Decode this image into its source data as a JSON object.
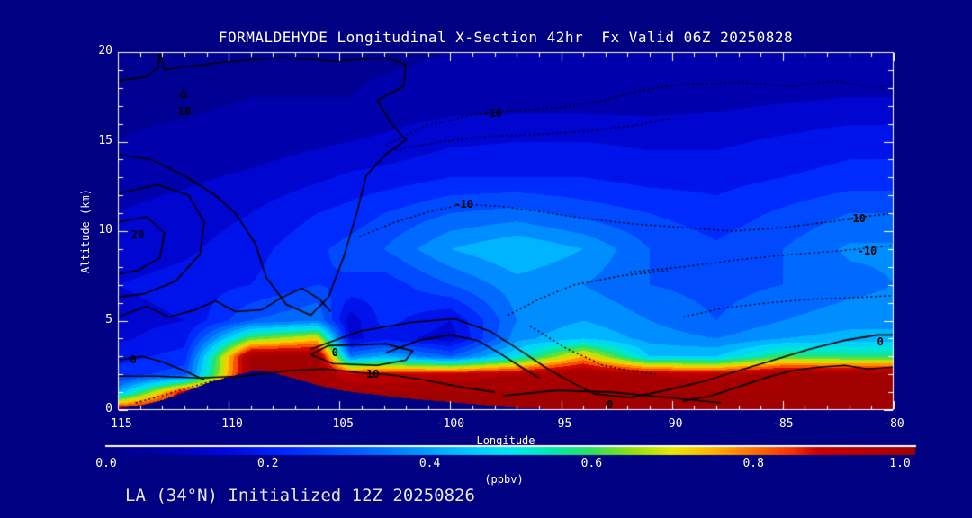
{
  "title": "FORMALDEHYDE Longitudinal X-Section 42hr  Fx Valid 06Z 20250828",
  "footer": "LA (34°N) Initialized 12Z 20250826",
  "colors": {
    "background": "#000082",
    "frame": "#FFFFFF",
    "text": "#FFFFFF",
    "footer_text": "#E6E6E6",
    "contour_line": "#000000"
  },
  "chart_data": {
    "type": "heatmap",
    "title": "FORMALDEHYDE Longitudinal X-Section 42hr  Fx Valid 06Z 20250828",
    "xlabel": "Longitude",
    "ylabel": "Altitude (km)",
    "xlim": [
      -115,
      -80
    ],
    "ylim": [
      0,
      20
    ],
    "grid_on": false,
    "x_major_ticks": [
      -115,
      -110,
      -105,
      -100,
      -95,
      -90,
      -85,
      -80
    ],
    "x_tick_labels": [
      "-115",
      "-110",
      "-105",
      "-100",
      "-95",
      "-90",
      "-85",
      "-80"
    ],
    "x_minor_step": 1,
    "y_major_ticks": [
      0,
      5,
      10,
      15,
      20
    ],
    "y_tick_labels": [
      "0",
      "5",
      "10",
      "15",
      "20"
    ],
    "y_minor_step": 1,
    "grid": {
      "lon": [
        -115,
        -112,
        -109,
        -106,
        -104.5,
        -103,
        -100,
        -97,
        -94,
        -91,
        -88,
        -85,
        -82,
        -80
      ],
      "alt_km": [
        0,
        1,
        2,
        3,
        4,
        5,
        7,
        9,
        11,
        13,
        15,
        17.5,
        20
      ],
      "ppbv": [
        [
          0.95,
          1.0,
          1.0,
          1.0,
          1.0,
          1.0,
          1.0,
          1.0,
          1.0,
          1.0,
          1.0,
          1.0,
          1.0,
          1.0
        ],
        [
          0.4,
          0.9,
          1.0,
          1.0,
          1.0,
          1.0,
          1.0,
          1.0,
          1.0,
          1.0,
          1.0,
          1.0,
          1.0,
          1.0
        ],
        [
          0.22,
          0.28,
          1.0,
          1.0,
          0.9,
          0.9,
          0.92,
          0.95,
          1.0,
          0.95,
          0.92,
          1.0,
          1.0,
          1.0
        ],
        [
          0.18,
          0.22,
          1.0,
          1.0,
          0.35,
          0.42,
          0.3,
          0.5,
          0.75,
          0.45,
          0.45,
          0.6,
          0.58,
          0.58
        ],
        [
          0.14,
          0.18,
          0.62,
          0.72,
          0.13,
          0.18,
          0.12,
          0.38,
          0.45,
          0.38,
          0.35,
          0.4,
          0.42,
          0.42
        ],
        [
          0.13,
          0.15,
          0.3,
          0.35,
          0.12,
          0.22,
          0.15,
          0.35,
          0.4,
          0.35,
          0.3,
          0.35,
          0.38,
          0.38
        ],
        [
          0.15,
          0.17,
          0.2,
          0.25,
          0.24,
          0.22,
          0.3,
          0.38,
          0.35,
          0.3,
          0.28,
          0.3,
          0.33,
          0.35
        ],
        [
          0.12,
          0.14,
          0.18,
          0.24,
          0.27,
          0.3,
          0.4,
          0.45,
          0.4,
          0.3,
          0.26,
          0.3,
          0.36,
          0.36
        ],
        [
          0.1,
          0.12,
          0.15,
          0.2,
          0.22,
          0.25,
          0.3,
          0.32,
          0.28,
          0.25,
          0.22,
          0.26,
          0.3,
          0.3
        ],
        [
          0.08,
          0.09,
          0.11,
          0.14,
          0.16,
          0.17,
          0.2,
          0.2,
          0.2,
          0.18,
          0.18,
          0.2,
          0.22,
          0.22
        ],
        [
          0.05,
          0.06,
          0.07,
          0.09,
          0.1,
          0.11,
          0.14,
          0.15,
          0.15,
          0.14,
          0.14,
          0.16,
          0.18,
          0.18
        ],
        [
          0.04,
          0.04,
          0.05,
          0.05,
          0.05,
          0.06,
          0.07,
          0.07,
          0.07,
          0.07,
          0.08,
          0.09,
          0.1,
          0.1
        ],
        [
          0.03,
          0.03,
          0.04,
          0.04,
          0.04,
          0.04,
          0.05,
          0.05,
          0.05,
          0.05,
          0.05,
          0.06,
          0.07,
          0.07
        ]
      ]
    },
    "terrain_km": [
      [
        -115,
        0.1
      ],
      [
        -114,
        0.25
      ],
      [
        -113,
        0.55
      ],
      [
        -112,
        1.0
      ],
      [
        -111,
        1.5
      ],
      [
        -110,
        1.85
      ],
      [
        -109,
        2.15
      ],
      [
        -108.5,
        2.2
      ],
      [
        -108,
        2.1
      ],
      [
        -107,
        1.75
      ],
      [
        -106,
        1.4
      ],
      [
        -105,
        1.1
      ],
      [
        -104,
        0.95
      ],
      [
        -103,
        0.8
      ],
      [
        -102,
        0.65
      ],
      [
        -101,
        0.55
      ],
      [
        -100,
        0.45
      ],
      [
        -99,
        0.35
      ],
      [
        -98,
        0.22
      ],
      [
        -97,
        0.12
      ],
      [
        -96,
        0.08
      ],
      [
        -95,
        0.05
      ],
      [
        -90,
        0.05
      ],
      [
        -85,
        0.05
      ],
      [
        -80,
        0.05
      ]
    ],
    "contours": {
      "solid": [
        [
          [
            -115,
            18.4
          ],
          [
            -113.8,
            18.6
          ],
          [
            -113.2,
            19.1
          ],
          [
            -113.1,
            20
          ]
        ],
        [
          [
            -113.1,
            20
          ],
          [
            -112.9,
            19
          ],
          [
            -110.6,
            19.4
          ],
          [
            -107.7,
            19.7
          ],
          [
            -105.2,
            19.5
          ],
          [
            -102.9,
            19.7
          ],
          [
            -102,
            19.3
          ],
          [
            -102.1,
            18.1
          ],
          [
            -103.3,
            17.3
          ],
          [
            -102.6,
            15.9
          ],
          [
            -102,
            15.1
          ],
          [
            -102.9,
            14.3
          ],
          [
            -103.8,
            13.1
          ],
          [
            -104.2,
            11.1
          ],
          [
            -104.8,
            8.6
          ],
          [
            -105.5,
            6.3
          ],
          [
            -106.3,
            5.3
          ],
          [
            -107.4,
            5.9
          ],
          [
            -108.3,
            7.4
          ],
          [
            -108.8,
            9.3
          ],
          [
            -109.7,
            11
          ],
          [
            -110.6,
            12
          ],
          [
            -112,
            13.1
          ],
          [
            -113.5,
            14
          ],
          [
            -115,
            14.3
          ]
        ],
        [
          [
            -115,
            12.1
          ],
          [
            -113.2,
            12.6
          ],
          [
            -111.8,
            12
          ],
          [
            -111.1,
            10.5
          ],
          [
            -111.3,
            8.7
          ],
          [
            -112.4,
            7.2
          ],
          [
            -113.8,
            6.5
          ],
          [
            -115,
            6.3
          ]
        ],
        [
          [
            -115,
            10.5
          ],
          [
            -113.7,
            10.8
          ],
          [
            -112.9,
            9.9
          ],
          [
            -113.1,
            8.5
          ],
          [
            -114.1,
            7.8
          ],
          [
            -115,
            7.6
          ]
        ],
        [
          [
            -115,
            2.8
          ],
          [
            -113.9,
            3
          ],
          [
            -113,
            2.7
          ],
          [
            -112,
            2.2
          ],
          [
            -111.1,
            1.7
          ]
        ],
        [
          [
            -115,
            5.2
          ],
          [
            -113.7,
            5.8
          ],
          [
            -112.7,
            5.2
          ],
          [
            -111.5,
            5.6
          ],
          [
            -110.6,
            6.1
          ],
          [
            -109.7,
            5.5
          ],
          [
            -108.5,
            5.6
          ],
          [
            -107.6,
            6.3
          ],
          [
            -106.7,
            6.8
          ],
          [
            -105.9,
            6.2
          ],
          [
            -105.4,
            5.5
          ]
        ],
        [
          [
            -106.3,
            3.4
          ],
          [
            -104.1,
            4.4
          ],
          [
            -101.8,
            4.9
          ],
          [
            -99.8,
            5.1
          ],
          [
            -98.2,
            4.4
          ],
          [
            -96.8,
            3.3
          ],
          [
            -95.6,
            2.3
          ],
          [
            -94.6,
            1.6
          ],
          [
            -93.5,
            0.9
          ],
          [
            -91.9,
            0.7
          ],
          [
            -90.3,
            1.1
          ],
          [
            -88.6,
            1.6
          ],
          [
            -87,
            2.2
          ],
          [
            -85.4,
            2.8
          ],
          [
            -83.8,
            3.4
          ],
          [
            -82.2,
            3.9
          ],
          [
            -80.7,
            4.2
          ],
          [
            -80,
            4.2
          ]
        ],
        [
          [
            -102.9,
            3.2
          ],
          [
            -101.4,
            3.9
          ],
          [
            -100,
            4.2
          ],
          [
            -98.8,
            3.9
          ],
          [
            -97.8,
            3.2
          ],
          [
            -96.8,
            2.4
          ],
          [
            -96,
            1.8
          ]
        ],
        [
          [
            -115,
            1.9
          ],
          [
            -113.2,
            1.9
          ],
          [
            -111.4,
            1.8
          ],
          [
            -109.4,
            1.9
          ],
          [
            -107.3,
            2.2
          ],
          [
            -105.7,
            2.3
          ],
          [
            -104.1,
            2.1
          ],
          [
            -102.9,
            2
          ],
          [
            -101.2,
            1.7
          ],
          [
            -99.6,
            1.3
          ],
          [
            -98,
            1
          ]
        ],
        [
          [
            -106.3,
            3.1
          ],
          [
            -105.5,
            3.6
          ],
          [
            -102.9,
            3.7
          ],
          [
            -101.7,
            3.3
          ],
          [
            -102,
            2.8
          ],
          [
            -103.3,
            2.5
          ],
          [
            -105.3,
            2.6
          ],
          [
            -106.3,
            3.1
          ]
        ],
        [
          [
            -89.5,
            0.5
          ],
          [
            -88.2,
            0.8
          ],
          [
            -87,
            1.3
          ],
          [
            -85.8,
            1.8
          ],
          [
            -84.6,
            2.2
          ],
          [
            -83.4,
            2.4
          ],
          [
            -82.2,
            2.5
          ],
          [
            -81.2,
            2.3
          ],
          [
            -80,
            2.4
          ]
        ],
        [
          [
            -97.6,
            0.8
          ],
          [
            -95.2,
            1.1
          ],
          [
            -92.7,
            1
          ],
          [
            -90.2,
            0.7
          ],
          [
            -87.8,
            0.4
          ]
        ],
        [
          [
            -112.2,
            17.5
          ],
          [
            -111.9,
            17.5
          ],
          [
            -112.05,
            17.9
          ],
          [
            -112.2,
            17.5
          ]
        ]
      ],
      "dotted": [
        [
          [
            -102.9,
            14.8
          ],
          [
            -101.1,
            15.9
          ],
          [
            -99,
            16.5
          ],
          [
            -97.4,
            16.7
          ],
          [
            -95.2,
            16.9
          ],
          [
            -93.1,
            17.3
          ],
          [
            -91.3,
            17.9
          ],
          [
            -89.5,
            18.2
          ],
          [
            -87,
            18.3
          ],
          [
            -84.6,
            18.1
          ],
          [
            -82.6,
            18.4
          ],
          [
            -80.9,
            18
          ],
          [
            -80,
            18.2
          ]
        ],
        [
          [
            -102.7,
            14.5
          ],
          [
            -100.4,
            15
          ],
          [
            -98.2,
            15.3
          ],
          [
            -96,
            15.4
          ],
          [
            -93.7,
            15.6
          ],
          [
            -91.7,
            15.9
          ],
          [
            -90.1,
            16.3
          ]
        ],
        [
          [
            -104.1,
            9.7
          ],
          [
            -102.5,
            10.5
          ],
          [
            -100.9,
            11.1
          ],
          [
            -99.4,
            11.5
          ],
          [
            -97.8,
            11.4
          ],
          [
            -96,
            11.1
          ],
          [
            -93.9,
            10.7
          ],
          [
            -91.7,
            10.4
          ],
          [
            -89.5,
            10.2
          ],
          [
            -87.3,
            10
          ],
          [
            -85,
            10.2
          ],
          [
            -83,
            10.5
          ],
          [
            -81.4,
            10.8
          ],
          [
            -80,
            11
          ]
        ],
        [
          [
            -91.9,
            7.7
          ],
          [
            -89.5,
            8
          ],
          [
            -87,
            8.4
          ],
          [
            -84.6,
            8.7
          ],
          [
            -82.4,
            8.9
          ],
          [
            -80,
            9.2
          ]
        ],
        [
          [
            -97.4,
            5.3
          ],
          [
            -96,
            6.2
          ],
          [
            -94.4,
            7
          ],
          [
            -92.3,
            7.5
          ],
          [
            -90.2,
            7.8
          ]
        ],
        [
          [
            -89.5,
            5.2
          ],
          [
            -87.7,
            5.7
          ],
          [
            -85.6,
            6
          ],
          [
            -83.6,
            6.2
          ],
          [
            -81.5,
            6.3
          ],
          [
            -80,
            6.4
          ]
        ],
        [
          [
            -114.2,
            0.4
          ],
          [
            -113,
            0.8
          ],
          [
            -111.7,
            1.3
          ],
          [
            -110.5,
            1.7
          ]
        ],
        [
          [
            -96.4,
            4.7
          ],
          [
            -95.5,
            4
          ],
          [
            -94.7,
            3.4
          ],
          [
            -93.8,
            2.9
          ],
          [
            -93.1,
            2.5
          ],
          [
            -91.9,
            2.2
          ],
          [
            -90.7,
            2
          ]
        ]
      ],
      "labels": [
        {
          "text": "10",
          "lon": -112.0,
          "alt": 16.7
        },
        {
          "text": "20",
          "lon": -114.1,
          "alt": 9.8
        },
        {
          "text": "0",
          "lon": -114.3,
          "alt": 2.8
        },
        {
          "text": "0",
          "lon": -105.2,
          "alt": 3.2
        },
        {
          "text": "10",
          "lon": -103.5,
          "alt": 2.0
        },
        {
          "text": "0",
          "lon": -92.8,
          "alt": 0.3
        },
        {
          "text": "0",
          "lon": -80.6,
          "alt": 3.8
        },
        {
          "text": "-10",
          "lon": -98.1,
          "alt": 16.6
        },
        {
          "text": "-10",
          "lon": -99.4,
          "alt": 11.5
        },
        {
          "text": "-10",
          "lon": -81.7,
          "alt": 10.7
        },
        {
          "text": "-10",
          "lon": -81.2,
          "alt": 8.9
        }
      ]
    },
    "colormap_stops": [
      [
        0.0,
        "#000084"
      ],
      [
        0.08,
        "#0000B0"
      ],
      [
        0.15,
        "#0008E0"
      ],
      [
        0.22,
        "#0028FF"
      ],
      [
        0.3,
        "#0058FF"
      ],
      [
        0.38,
        "#0090FF"
      ],
      [
        0.45,
        "#00C8FF"
      ],
      [
        0.5,
        "#00E4F0"
      ],
      [
        0.55,
        "#00E8B0"
      ],
      [
        0.6,
        "#30E060"
      ],
      [
        0.65,
        "#90E010"
      ],
      [
        0.7,
        "#E8E800"
      ],
      [
        0.75,
        "#FFB400"
      ],
      [
        0.8,
        "#FF7000"
      ],
      [
        0.85,
        "#F53000"
      ],
      [
        0.88,
        "#C80000"
      ],
      [
        1.0,
        "#A00000"
      ]
    ],
    "fill_quantize_step": 0.05,
    "colorbar": {
      "min": 0.0,
      "max": 1.0,
      "tick_labels": [
        "0.0",
        "0.2",
        "0.4",
        "0.6",
        "0.8",
        "1.0"
      ],
      "unit_label": "(ppbv)"
    }
  }
}
